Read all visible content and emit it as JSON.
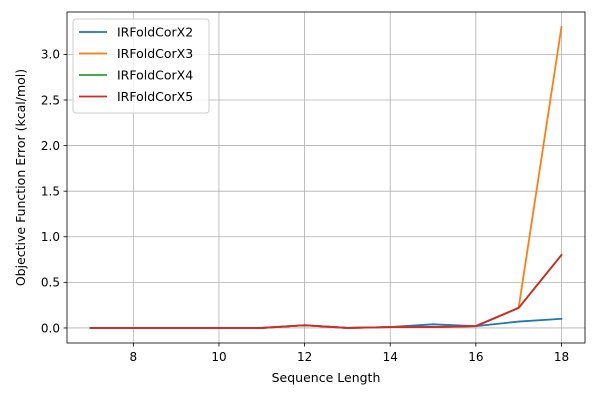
{
  "chart_data": {
    "type": "line",
    "title": "",
    "xlabel": "Sequence Length",
    "ylabel": "Objective Function Error (kcal/mol)",
    "x": [
      7,
      8,
      9,
      10,
      11,
      12,
      13,
      14,
      15,
      16,
      17,
      18
    ],
    "xlim": [
      6.45,
      18.55
    ],
    "ylim": [
      -0.165,
      3.465
    ],
    "x_ticks": [
      8,
      10,
      12,
      14,
      16,
      18
    ],
    "y_ticks": [
      0.0,
      0.5,
      1.0,
      1.5,
      2.0,
      2.5,
      3.0
    ],
    "x_tick_labels": [
      "8",
      "10",
      "12",
      "14",
      "16",
      "18"
    ],
    "y_tick_labels": [
      "0.0",
      "0.5",
      "1.0",
      "1.5",
      "2.0",
      "2.5",
      "3.0"
    ],
    "grid": true,
    "legend_position": "top-left",
    "series": [
      {
        "name": "IRFoldCorX2",
        "color": "#1f77b4",
        "values": [
          0.0,
          0.0,
          0.0,
          0.0,
          0.0,
          0.03,
          0.0,
          0.01,
          0.04,
          0.02,
          0.07,
          0.1
        ]
      },
      {
        "name": "IRFoldCorX3",
        "color": "#ff7f0e",
        "values": [
          0.0,
          0.0,
          0.0,
          0.0,
          0.0,
          0.03,
          0.0,
          0.01,
          0.01,
          0.02,
          0.22,
          3.3
        ]
      },
      {
        "name": "IRFoldCorX4",
        "color": "#2ca02c",
        "values": [
          0.0,
          0.0,
          0.0,
          0.0,
          0.0,
          0.03,
          0.0,
          0.01,
          0.01,
          0.02,
          0.22,
          0.8
        ]
      },
      {
        "name": "IRFoldCorX5",
        "color": "#d62728",
        "values": [
          0.0,
          0.0,
          0.0,
          0.0,
          0.0,
          0.03,
          0.0,
          0.01,
          0.01,
          0.02,
          0.22,
          0.8
        ]
      }
    ]
  }
}
